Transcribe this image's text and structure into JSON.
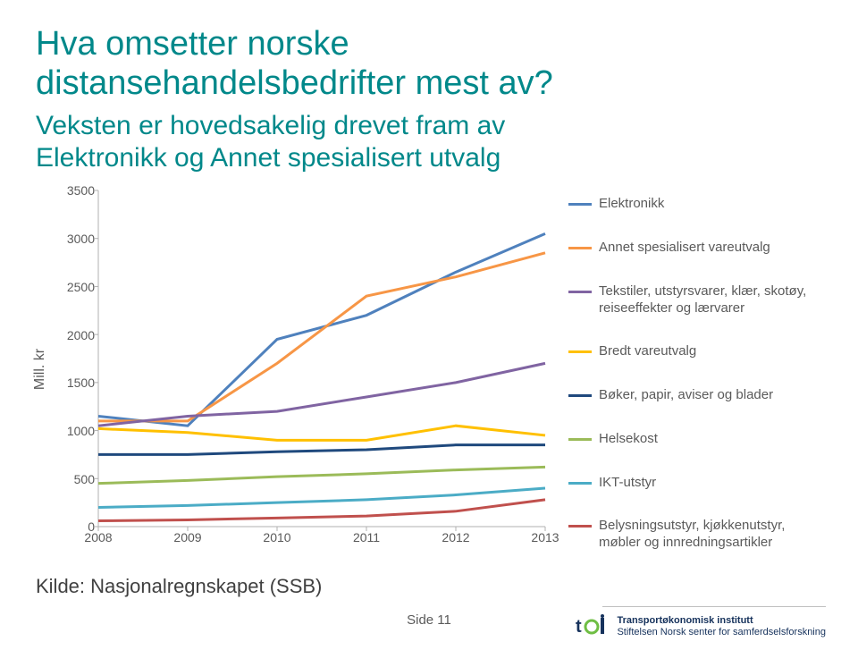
{
  "title_line1": "Hva omsetter norske",
  "title_line2": "distansehandelsbedrifter mest av?",
  "subtitle_line1": "Veksten er hovedsakelig drevet fram av",
  "subtitle_line2": "Elektronikk og Annet spesialisert utvalg",
  "source_label": "Kilde: Nasjonalregnskapet (SSB)",
  "page_label": "Side 11",
  "footer_org_line1": "Transportøkonomisk institutt",
  "footer_org_line2": "Stiftelsen Norsk senter for samferdselsforskning",
  "chart": {
    "type": "line",
    "ylabel": "Mill. kr",
    "ylim": [
      0,
      3500
    ],
    "ytick_step": 500,
    "yticks": [
      0,
      500,
      1000,
      1500,
      2000,
      2500,
      3000,
      3500
    ],
    "x_categories": [
      "2008",
      "2009",
      "2010",
      "2011",
      "2012",
      "2013"
    ],
    "line_width": 3,
    "axis_color": "#b0b0b0",
    "tick_fontsize": 14,
    "label_fontsize": 16,
    "text_color": "#5a5a5a",
    "background_color": "#ffffff",
    "series": [
      {
        "name": "Elektronikk",
        "color": "#4f81bd",
        "values": [
          1150,
          1050,
          1950,
          2200,
          2650,
          3050
        ]
      },
      {
        "name": "Annet spesialisert vareutvalg",
        "color": "#f79646",
        "values": [
          1100,
          1100,
          1700,
          2400,
          2600,
          2850
        ]
      },
      {
        "name": "Tekstiler, utstyrsvarer, klær, skotøy, reiseeffekter og lærvarer",
        "color": "#8064a2",
        "values": [
          1050,
          1150,
          1200,
          1350,
          1500,
          1700
        ]
      },
      {
        "name": "Bredt vareutvalg",
        "color": "#ffc000",
        "values": [
          1020,
          980,
          900,
          900,
          1050,
          950
        ]
      },
      {
        "name": "Bøker, papir, aviser og blader",
        "color": "#1f497d",
        "values": [
          750,
          750,
          780,
          800,
          850,
          850
        ]
      },
      {
        "name": "Helsekost",
        "color": "#9bbb59",
        "values": [
          450,
          480,
          520,
          550,
          590,
          620
        ]
      },
      {
        "name": "IKT-utstyr",
        "color": "#4bacc6",
        "values": [
          200,
          220,
          250,
          280,
          330,
          400
        ]
      },
      {
        "name": "Belysningsutstyr, kjøkkenutstyr, møbler og innredningsartikler",
        "color": "#c0504d",
        "values": [
          60,
          70,
          90,
          110,
          160,
          280
        ]
      }
    ]
  },
  "title_color": "#00888a",
  "title_fontsize": 38,
  "subtitle_fontsize": 30
}
